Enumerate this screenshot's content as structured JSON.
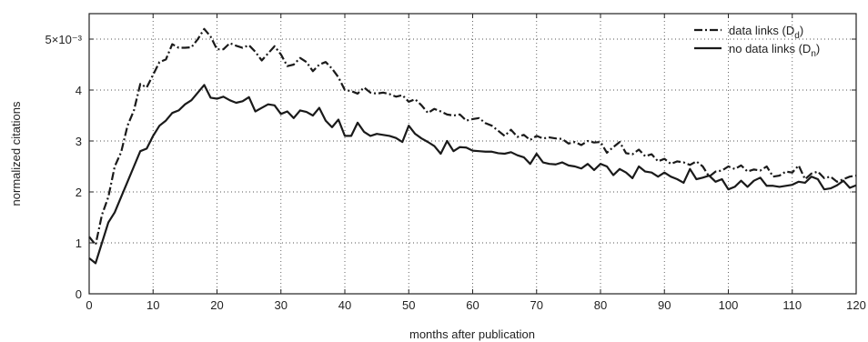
{
  "chart_data": {
    "type": "line",
    "xlabel": "months after publication",
    "ylabel": "normalized citations",
    "xlim": [
      0,
      120
    ],
    "ylim": [
      0,
      0.0055
    ],
    "x_ticks": [
      0,
      10,
      20,
      30,
      40,
      50,
      60,
      70,
      80,
      90,
      100,
      110,
      120
    ],
    "x_tick_labels": [
      "0",
      "10",
      "20",
      "30",
      "40",
      "50",
      "60",
      "70",
      "80",
      "90",
      "100",
      "110",
      "120"
    ],
    "y_ticks": [
      0,
      0.001,
      0.002,
      0.003,
      0.004,
      0.005
    ],
    "y_tick_labels": [
      "0",
      "1",
      "2",
      "3",
      "4",
      "5×10⁻³"
    ],
    "grid": true,
    "legend_position": "top-right",
    "x": [
      0,
      1,
      2,
      3,
      4,
      5,
      6,
      7,
      8,
      9,
      10,
      11,
      12,
      13,
      14,
      15,
      16,
      17,
      18,
      19,
      20,
      21,
      22,
      23,
      24,
      25,
      26,
      27,
      28,
      29,
      30,
      31,
      32,
      33,
      34,
      35,
      36,
      37,
      38,
      39,
      40,
      41,
      42,
      43,
      44,
      45,
      46,
      47,
      48,
      49,
      50,
      51,
      52,
      53,
      54,
      55,
      56,
      57,
      58,
      59,
      60,
      61,
      62,
      63,
      64,
      65,
      66,
      67,
      68,
      69,
      70,
      71,
      72,
      73,
      74,
      75,
      76,
      77,
      78,
      79,
      80,
      81,
      82,
      83,
      84,
      85,
      86,
      87,
      88,
      89,
      90,
      91,
      92,
      93,
      94,
      95,
      96,
      97,
      98,
      99,
      100,
      101,
      102,
      103,
      104,
      105,
      106,
      107,
      108,
      109,
      110,
      111,
      112,
      113,
      114,
      115,
      116,
      117,
      118,
      119,
      120
    ],
    "series": [
      {
        "name": "data links (D",
        "name_sub": "d",
        "name_tail": ")",
        "style": "dash-dot",
        "color": "#1a1a1a",
        "values": [
          0.00112,
          0.00096,
          0.00155,
          0.0019,
          0.0025,
          0.00278,
          0.0033,
          0.0036,
          0.00412,
          0.00405,
          0.0043,
          0.00455,
          0.0046,
          0.0049,
          0.00483,
          0.00483,
          0.00484,
          0.005,
          0.0052,
          0.00505,
          0.0048,
          0.0048,
          0.00492,
          0.00487,
          0.00483,
          0.00488,
          0.00475,
          0.00458,
          0.00472,
          0.00486,
          0.0047,
          0.00447,
          0.0045,
          0.00463,
          0.00455,
          0.00437,
          0.0045,
          0.00455,
          0.00442,
          0.00425,
          0.004,
          0.00398,
          0.00393,
          0.00405,
          0.00395,
          0.00393,
          0.00395,
          0.00392,
          0.00387,
          0.0039,
          0.00377,
          0.00382,
          0.0037,
          0.00355,
          0.00363,
          0.00358,
          0.00352,
          0.0035,
          0.00352,
          0.0034,
          0.00343,
          0.00345,
          0.00335,
          0.0033,
          0.0032,
          0.0031,
          0.00322,
          0.00308,
          0.00312,
          0.00302,
          0.0031,
          0.00305,
          0.00307,
          0.00305,
          0.00304,
          0.00295,
          0.00298,
          0.00292,
          0.003,
          0.00297,
          0.00298,
          0.00277,
          0.00288,
          0.00298,
          0.00276,
          0.00274,
          0.00283,
          0.0027,
          0.00274,
          0.0026,
          0.00265,
          0.00255,
          0.0026,
          0.00258,
          0.00253,
          0.0026,
          0.0025,
          0.0023,
          0.0024,
          0.00242,
          0.0025,
          0.00245,
          0.00252,
          0.0024,
          0.00244,
          0.00242,
          0.0025,
          0.0023,
          0.00232,
          0.0024,
          0.00238,
          0.00252,
          0.00225,
          0.00236,
          0.0024,
          0.00227,
          0.0023,
          0.0022,
          0.00225,
          0.0023,
          0.00232
        ]
      },
      {
        "name": "no data links (D",
        "name_sub": "n",
        "name_tail": ")",
        "style": "solid",
        "color": "#1a1a1a",
        "values": [
          0.0007,
          0.0006,
          0.001,
          0.0014,
          0.0016,
          0.0019,
          0.0022,
          0.0025,
          0.0028,
          0.00285,
          0.0031,
          0.0033,
          0.0034,
          0.00355,
          0.0036,
          0.00372,
          0.0038,
          0.00395,
          0.0041,
          0.00385,
          0.00383,
          0.00387,
          0.0038,
          0.00375,
          0.00378,
          0.00386,
          0.00358,
          0.00365,
          0.00372,
          0.0037,
          0.00353,
          0.00358,
          0.00345,
          0.0036,
          0.00357,
          0.0035,
          0.00365,
          0.0034,
          0.00327,
          0.00342,
          0.0031,
          0.0031,
          0.00336,
          0.00318,
          0.0031,
          0.00314,
          0.00312,
          0.0031,
          0.00306,
          0.00298,
          0.0033,
          0.00314,
          0.00305,
          0.00298,
          0.0029,
          0.00275,
          0.003,
          0.0028,
          0.00288,
          0.00287,
          0.00281,
          0.0028,
          0.00279,
          0.00279,
          0.00276,
          0.00275,
          0.00278,
          0.00272,
          0.00268,
          0.00255,
          0.00275,
          0.00258,
          0.00255,
          0.00254,
          0.00258,
          0.00252,
          0.0025,
          0.00246,
          0.00255,
          0.00243,
          0.00255,
          0.0025,
          0.00233,
          0.00245,
          0.00238,
          0.00227,
          0.0025,
          0.0024,
          0.00238,
          0.0023,
          0.00238,
          0.0023,
          0.00225,
          0.00218,
          0.00245,
          0.00225,
          0.00228,
          0.00232,
          0.0022,
          0.00225,
          0.00205,
          0.0021,
          0.00222,
          0.0021,
          0.00222,
          0.00228,
          0.00212,
          0.00212,
          0.0021,
          0.00212,
          0.00214,
          0.0022,
          0.00218,
          0.0023,
          0.00225,
          0.00205,
          0.00207,
          0.00213,
          0.00222,
          0.00208,
          0.00213
        ]
      }
    ]
  }
}
